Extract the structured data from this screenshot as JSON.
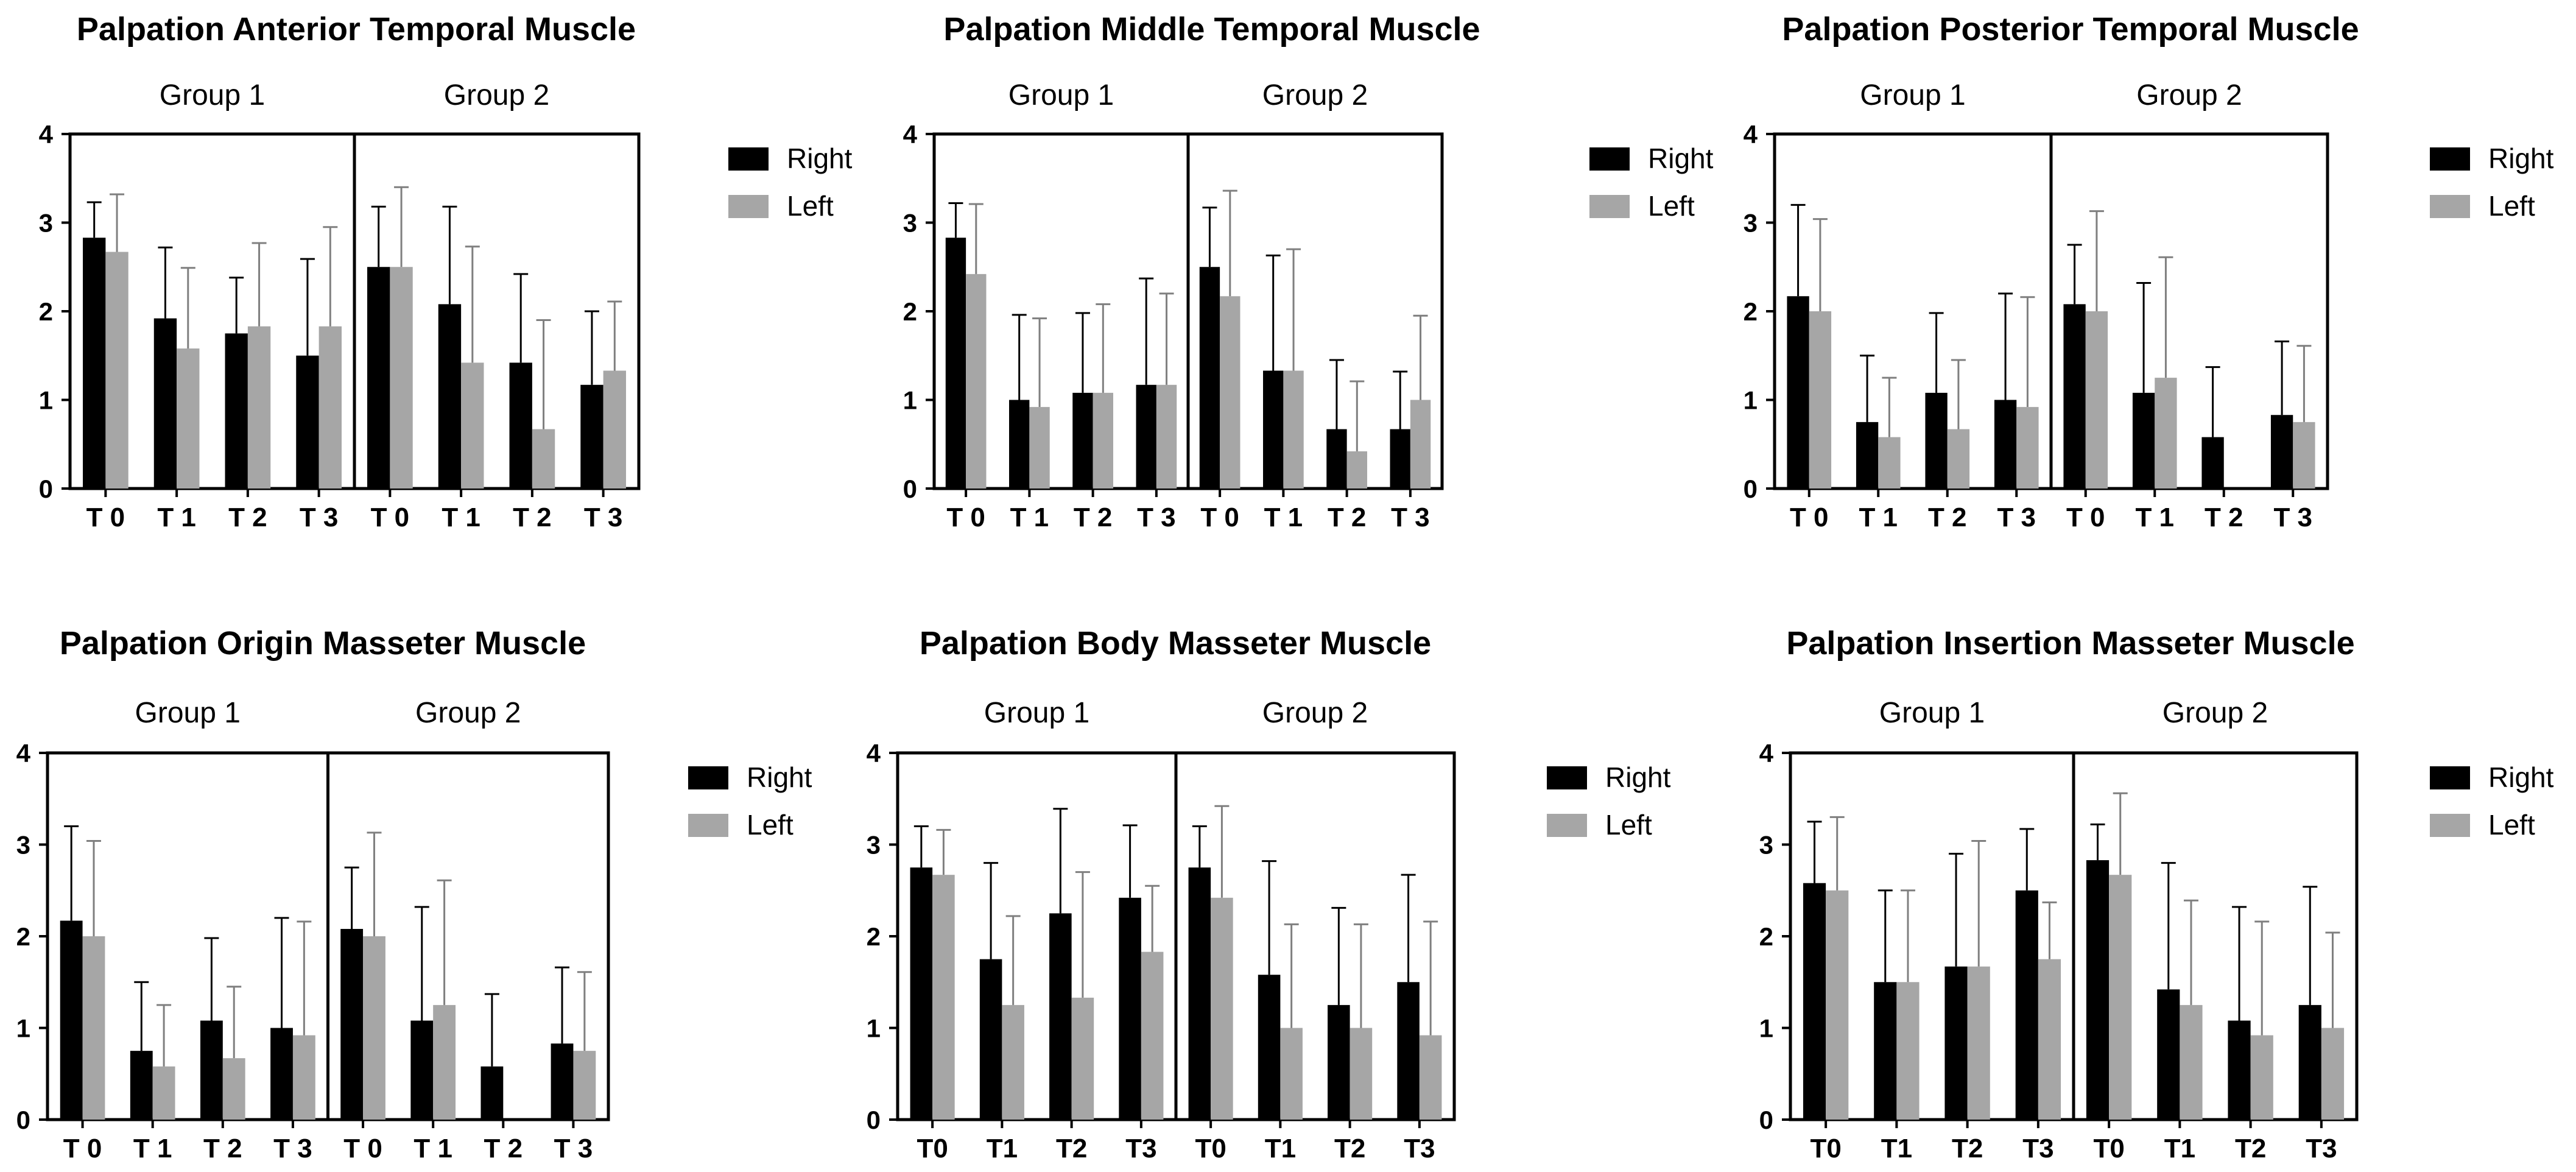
{
  "colors": {
    "right": "#000000",
    "left": "#a6a6a6",
    "axis": "#000000",
    "errorbar_right": "#000000",
    "errorbar_left": "#7f7f7f"
  },
  "chart_data": [
    {
      "type": "bar",
      "title": "Palpation Anterior Temporal Muscle",
      "groups": [
        "Group 1",
        "Group 2"
      ],
      "categories": [
        "T 0",
        "T 1",
        "T 2",
        "T 3"
      ],
      "yticks": [
        0,
        1,
        2,
        3,
        4
      ],
      "ylim": [
        0,
        4
      ],
      "legend": [
        "Right",
        "Left"
      ],
      "series": [
        {
          "name": "Right",
          "values": [
            [
              2.83,
              1.92,
              1.75,
              1.5
            ],
            [
              2.5,
              2.08,
              1.42,
              1.17
            ]
          ],
          "errors": [
            [
              0.4,
              0.8,
              0.63,
              1.09
            ],
            [
              0.68,
              1.1,
              1.0,
              0.83
            ]
          ]
        },
        {
          "name": "Left",
          "values": [
            [
              2.67,
              1.58,
              1.83,
              1.83
            ],
            [
              2.5,
              1.42,
              0.67,
              1.33
            ]
          ],
          "errors": [
            [
              0.65,
              0.91,
              0.94,
              1.12
            ],
            [
              0.9,
              1.31,
              1.23,
              0.78
            ]
          ]
        }
      ]
    },
    {
      "type": "bar",
      "title": "Palpation Middle Temporal Muscle",
      "groups": [
        "Group 1",
        "Group 2"
      ],
      "categories": [
        "T 0",
        "T 1",
        "T 2",
        "T 3"
      ],
      "yticks": [
        0,
        1,
        2,
        3,
        4
      ],
      "ylim": [
        0,
        4
      ],
      "legend": [
        "Right",
        "Left"
      ],
      "series": [
        {
          "name": "Right",
          "values": [
            [
              2.83,
              1.0,
              1.08,
              1.17
            ],
            [
              2.5,
              1.33,
              0.67,
              0.67
            ]
          ],
          "errors": [
            [
              0.39,
              0.96,
              0.9,
              1.2
            ],
            [
              0.67,
              1.3,
              0.78,
              0.65
            ]
          ]
        },
        {
          "name": "Left",
          "values": [
            [
              2.42,
              0.92,
              1.08,
              1.17
            ],
            [
              2.17,
              1.33,
              0.42,
              1.0
            ]
          ],
          "errors": [
            [
              0.79,
              1.0,
              1.0,
              1.03
            ],
            [
              1.19,
              1.37,
              0.79,
              0.95
            ]
          ]
        }
      ]
    },
    {
      "type": "bar",
      "title": "Palpation Posterior Temporal Muscle",
      "groups": [
        "Group 1",
        "Group 2"
      ],
      "categories": [
        "T 0",
        "T 1",
        "T 2",
        "T 3"
      ],
      "yticks": [
        0,
        1,
        2,
        3,
        4
      ],
      "ylim": [
        0,
        4
      ],
      "legend": [
        "Right",
        "Left"
      ],
      "series": [
        {
          "name": "Right",
          "values": [
            [
              2.17,
              0.75,
              1.08,
              1.0
            ],
            [
              2.08,
              1.08,
              0.58,
              0.83
            ]
          ],
          "errors": [
            [
              1.03,
              0.75,
              0.9,
              1.2
            ],
            [
              0.67,
              1.24,
              0.79,
              0.83
            ]
          ]
        },
        {
          "name": "Left",
          "values": [
            [
              2.0,
              0.58,
              0.67,
              0.92
            ],
            [
              2.0,
              1.25,
              0.0,
              0.75
            ]
          ],
          "errors": [
            [
              1.04,
              0.67,
              0.78,
              1.24
            ],
            [
              1.13,
              1.36,
              0.0,
              0.86
            ]
          ]
        }
      ]
    },
    {
      "type": "bar",
      "title": "Palpation Origin Masseter Muscle",
      "groups": [
        "Group 1",
        "Group 2"
      ],
      "categories": [
        "T 0",
        "T 1",
        "T 2",
        "T 3"
      ],
      "yticks": [
        0,
        1,
        2,
        3,
        4
      ],
      "ylim": [
        0,
        4
      ],
      "legend": [
        "Right",
        "Left"
      ],
      "series": [
        {
          "name": "Right",
          "values": [
            [
              2.17,
              0.75,
              1.08,
              1.0
            ],
            [
              2.08,
              1.08,
              0.58,
              0.83
            ]
          ],
          "errors": [
            [
              1.03,
              0.75,
              0.9,
              1.2
            ],
            [
              0.67,
              1.24,
              0.79,
              0.83
            ]
          ]
        },
        {
          "name": "Left",
          "values": [
            [
              2.0,
              0.58,
              0.67,
              0.92
            ],
            [
              2.0,
              1.25,
              0.0,
              0.75
            ]
          ],
          "errors": [
            [
              1.04,
              0.67,
              0.78,
              1.24
            ],
            [
              1.13,
              1.36,
              0.0,
              0.86
            ]
          ]
        }
      ]
    },
    {
      "type": "bar",
      "title": "Palpation Body Masseter Muscle",
      "groups": [
        "Group 1",
        "Group 2"
      ],
      "categories": [
        "T0",
        "T1",
        "T2",
        "T3"
      ],
      "yticks": [
        0,
        1,
        2,
        3,
        4
      ],
      "ylim": [
        0,
        4
      ],
      "legend": [
        "Right",
        "Left"
      ],
      "series": [
        {
          "name": "Right",
          "values": [
            [
              2.75,
              1.75,
              2.25,
              2.42
            ],
            [
              2.75,
              1.58,
              1.25,
              1.5
            ]
          ],
          "errors": [
            [
              0.45,
              1.05,
              1.14,
              0.79
            ],
            [
              0.45,
              1.24,
              1.06,
              1.17
            ]
          ]
        },
        {
          "name": "Left",
          "values": [
            [
              2.67,
              1.25,
              1.33,
              1.83
            ],
            [
              2.42,
              1.0,
              1.0,
              0.92
            ]
          ],
          "errors": [
            [
              0.49,
              0.97,
              1.37,
              0.72
            ],
            [
              1.0,
              1.13,
              1.13,
              1.24
            ]
          ]
        }
      ]
    },
    {
      "type": "bar",
      "title": "Palpation Insertion Masseter Muscle",
      "groups": [
        "Group 1",
        "Group 2"
      ],
      "categories": [
        "T0",
        "T1",
        "T2",
        "T3"
      ],
      "yticks": [
        0,
        1,
        2,
        3,
        4
      ],
      "ylim": [
        0,
        4
      ],
      "legend": [
        "Right",
        "Left"
      ],
      "series": [
        {
          "name": "Right",
          "values": [
            [
              2.58,
              1.5,
              1.67,
              2.5
            ],
            [
              2.83,
              1.42,
              1.08,
              1.25
            ]
          ],
          "errors": [
            [
              0.67,
              1.0,
              1.23,
              0.67
            ],
            [
              0.39,
              1.38,
              1.24,
              1.29
            ]
          ]
        },
        {
          "name": "Left",
          "values": [
            [
              2.5,
              1.5,
              1.67,
              1.75
            ],
            [
              2.67,
              1.25,
              0.92,
              1.0
            ]
          ],
          "errors": [
            [
              0.8,
              1.0,
              1.37,
              0.62
            ],
            [
              0.89,
              1.14,
              1.24,
              1.04
            ]
          ]
        }
      ]
    }
  ]
}
